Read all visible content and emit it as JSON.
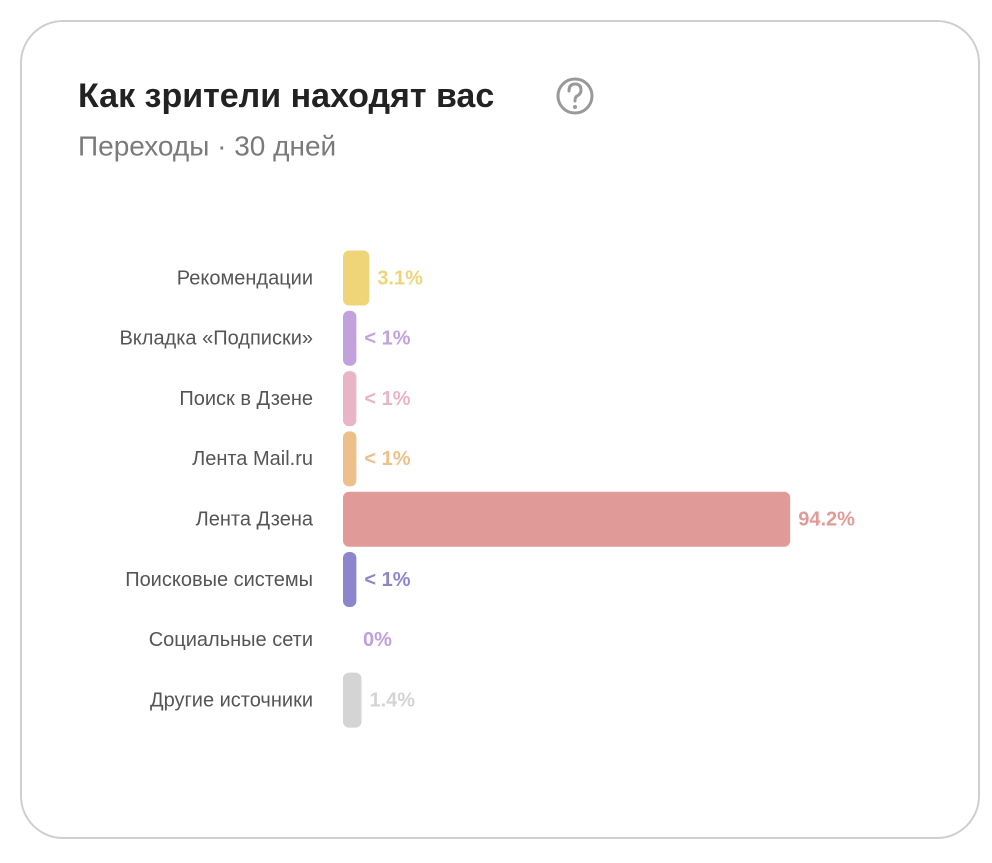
{
  "chart_data": {
    "type": "hbar",
    "title": "Как зрители находят вас",
    "subtitle": "Переходы · 30 дней",
    "categories": [
      "Рекомендации",
      "Вкладка «Подписки»",
      "Поиск в Дзене",
      "Лента Mail.ru",
      "Лента Дзена",
      "Поисковые системы",
      "Социальные сети",
      "Другие источники"
    ],
    "values": [
      3.1,
      0.3,
      0.3,
      0.3,
      94.2,
      0.3,
      0,
      1.4
    ],
    "value_labels": [
      "3.1%",
      "< 1%",
      "< 1%",
      "< 1%",
      "94.2%",
      "< 1%",
      "0%",
      "1.4%"
    ],
    "colors": [
      "#f0d478",
      "#c2a2dd",
      "#e9b4c6",
      "#edc08a",
      "#e09b98",
      "#8d86cc",
      "#bf9fdc",
      "#d4d4d4"
    ]
  }
}
